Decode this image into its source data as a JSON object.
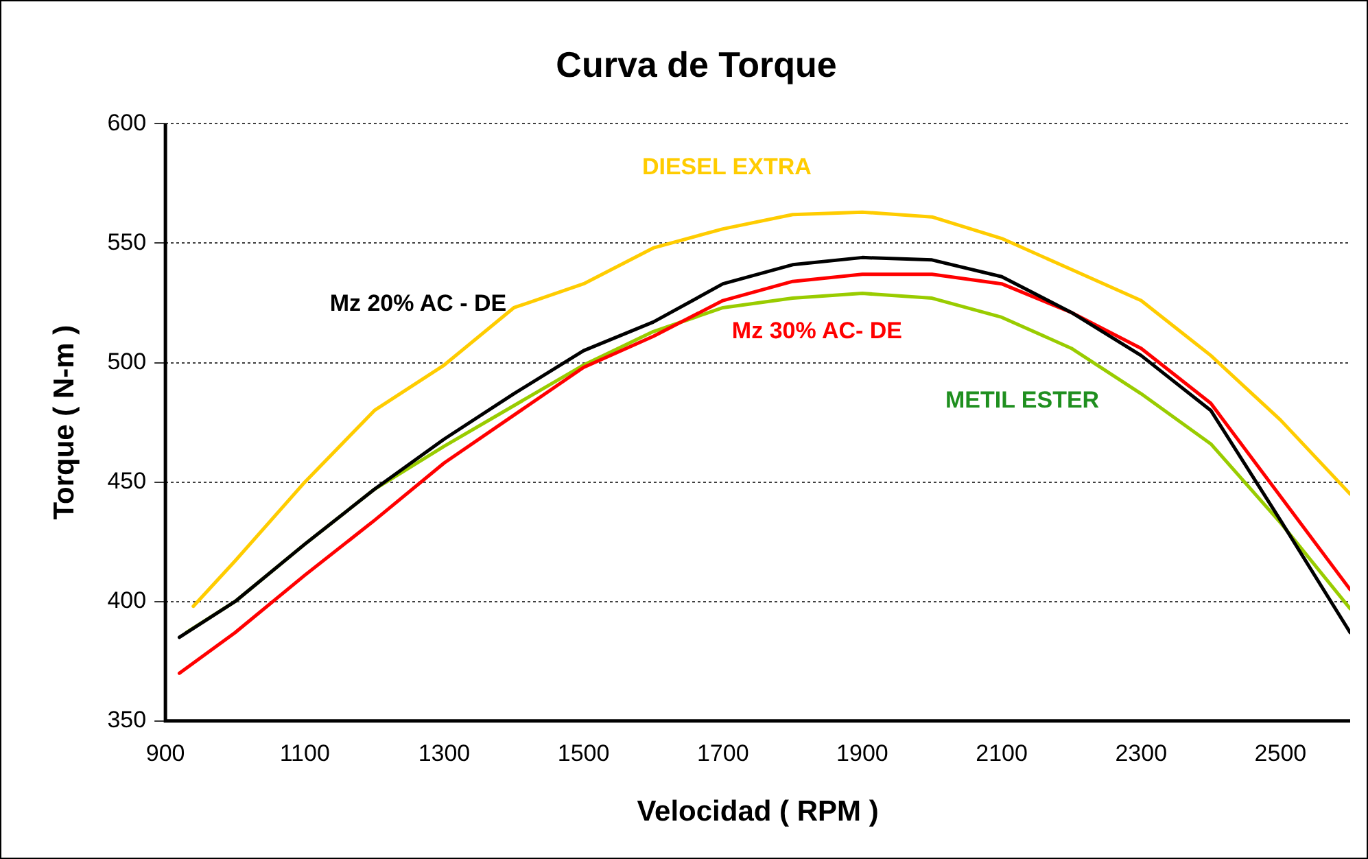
{
  "chart_data": {
    "type": "line",
    "title": "Curva de Torque",
    "xlabel": "Velocidad ( RPM )",
    "ylabel": "Torque ( N-m )",
    "xlim": [
      900,
      2600
    ],
    "xticks": [
      900,
      1100,
      1300,
      1500,
      1700,
      1900,
      2100,
      2300,
      2500
    ],
    "ylim": [
      350,
      600
    ],
    "yticks": [
      350,
      400,
      450,
      500,
      550,
      600
    ],
    "grid": "y",
    "legend": false,
    "marker": "none",
    "line_style": "solid",
    "series": [
      {
        "name": "DIESEL EXTRA",
        "color": "#ffcc00",
        "x": [
          940,
          1000,
          1100,
          1200,
          1300,
          1400,
          1500,
          1600,
          1700,
          1800,
          1900,
          2000,
          2100,
          2200,
          2300,
          2400,
          2500,
          2600
        ],
        "values": [
          398,
          417,
          450,
          480,
          499,
          523,
          533,
          548,
          556,
          562,
          563,
          561,
          552,
          539,
          526,
          503,
          476,
          445
        ]
      },
      {
        "name": "Mz 20% AC - DE",
        "color": "#000000",
        "x": [
          920,
          1000,
          1100,
          1200,
          1300,
          1400,
          1500,
          1600,
          1700,
          1800,
          1900,
          2000,
          2100,
          2200,
          2300,
          2400,
          2500,
          2600
        ],
        "values": [
          385,
          400,
          424,
          447,
          468,
          487,
          505,
          517,
          533,
          541,
          544,
          543,
          536,
          521,
          503,
          480,
          434,
          387
        ]
      },
      {
        "name": "Mz 30% AC- DE",
        "color": "#ff0000",
        "x": [
          920,
          1000,
          1100,
          1200,
          1300,
          1400,
          1500,
          1600,
          1700,
          1800,
          1900,
          2000,
          2100,
          2200,
          2300,
          2400,
          2500,
          2600
        ],
        "values": [
          370,
          387,
          411,
          434,
          458,
          478,
          498,
          511,
          526,
          534,
          537,
          537,
          533,
          521,
          506,
          483,
          444,
          405
        ]
      },
      {
        "name": "METIL ESTER",
        "color": "#99cc00",
        "x": [
          930,
          1000,
          1100,
          1200,
          1300,
          1400,
          1500,
          1600,
          1700,
          1800,
          1900,
          2000,
          2100,
          2200,
          2300,
          2400,
          2500,
          2600
        ],
        "values": [
          387,
          400,
          424,
          447,
          465,
          482,
          499,
          513,
          523,
          527,
          529,
          527,
          519,
          506,
          487,
          466,
          433,
          397
        ]
      }
    ]
  }
}
